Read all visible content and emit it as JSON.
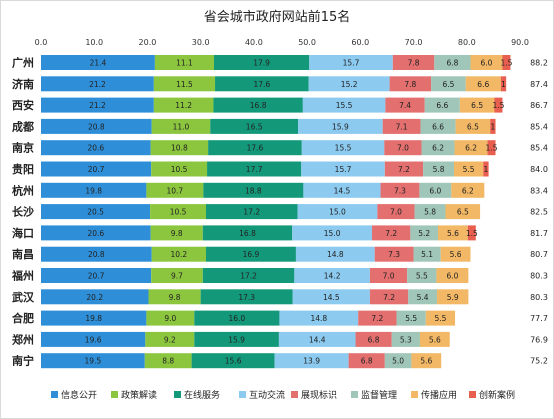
{
  "chart_data": {
    "type": "bar",
    "orientation": "horizontal",
    "stacked": true,
    "title": "省会城市政府网站前15名",
    "xlim": [
      0,
      90
    ],
    "xticks": [
      "0.0",
      "10.0",
      "20.0",
      "30.0",
      "40.0",
      "50.0",
      "60.0",
      "70.0",
      "80.0",
      "90.0"
    ],
    "grid": false,
    "legend_position": "bottom",
    "categories": [
      "广州",
      "济南",
      "西安",
      "成都",
      "南京",
      "贵阳",
      "杭州",
      "长沙",
      "海口",
      "南昌",
      "福州",
      "武汉",
      "合肥",
      "郑州",
      "南宁"
    ],
    "totals": [
      "88.2",
      "87.4",
      "86.7",
      "85.4",
      "85.4",
      "84.0",
      "83.4",
      "82.5",
      "81.7",
      "80.7",
      "80.3",
      "80.3",
      "77.7",
      "76.9",
      "75.2"
    ],
    "series": [
      {
        "name": "信息公开",
        "color": "#2e8fd8",
        "values": [
          21.4,
          21.2,
          21.2,
          20.8,
          20.6,
          20.7,
          19.8,
          20.5,
          20.6,
          20.8,
          20.7,
          20.2,
          19.8,
          19.6,
          19.5
        ]
      },
      {
        "name": "政策解读",
        "color": "#8cc63f",
        "values": [
          11.1,
          11.5,
          11.2,
          11.0,
          10.8,
          10.5,
          10.7,
          10.5,
          9.8,
          10.2,
          9.7,
          9.8,
          9.0,
          9.2,
          8.8
        ]
      },
      {
        "name": "在线服务",
        "color": "#14987a",
        "values": [
          17.9,
          17.6,
          16.8,
          16.5,
          17.6,
          17.7,
          18.8,
          17.2,
          16.8,
          16.9,
          17.2,
          17.3,
          16.0,
          15.9,
          15.6
        ]
      },
      {
        "name": "互动交流",
        "color": "#8ccaf0",
        "values": [
          15.7,
          15.2,
          15.5,
          15.9,
          15.5,
          15.7,
          14.5,
          15.0,
          15.0,
          14.8,
          14.2,
          14.5,
          14.8,
          14.4,
          13.9
        ]
      },
      {
        "name": "展现标识",
        "color": "#e36f6f",
        "values": [
          7.8,
          7.8,
          7.4,
          7.1,
          7.0,
          7.2,
          7.3,
          7.0,
          7.2,
          7.3,
          7.0,
          7.2,
          7.2,
          6.8,
          6.8
        ]
      },
      {
        "name": "监督管理",
        "color": "#9fc6b8",
        "values": [
          6.8,
          6.5,
          6.6,
          6.6,
          6.2,
          5.8,
          6.0,
          5.8,
          5.2,
          5.1,
          5.5,
          5.4,
          5.5,
          5.3,
          5.0
        ]
      },
      {
        "name": "传播应用",
        "color": "#f2b866",
        "values": [
          6.0,
          6.6,
          6.5,
          6.5,
          6.2,
          5.5,
          6.2,
          6.5,
          5.6,
          5.6,
          6.0,
          5.9,
          5.5,
          5.6,
          5.6
        ]
      },
      {
        "name": "创新案例",
        "color": "#e85e4f",
        "values": [
          1.5,
          1.0,
          1.5,
          1.0,
          1.5,
          1.0,
          0,
          0,
          1.5,
          0,
          0,
          0,
          0,
          0,
          0
        ]
      }
    ],
    "segment_labels": [
      [
        "21.4",
        "11.1",
        "17.9",
        "15.7",
        "7.8",
        "6.8",
        "6.0",
        "1.5"
      ],
      [
        "21.2",
        "11.5",
        "17.6",
        "15.2",
        "7.8",
        "6.5",
        "6.6",
        "1"
      ],
      [
        "21.2",
        "11.2",
        "16.8",
        "15.5",
        "7.4",
        "6.6",
        "6.5",
        "1.5"
      ],
      [
        "20.8",
        "11.0",
        "16.5",
        "15.9",
        "7.1",
        "6.6",
        "6.5",
        "1"
      ],
      [
        "20.6",
        "10.8",
        "17.6",
        "15.5",
        "7.0",
        "6.2",
        "6.2",
        "1.5"
      ],
      [
        "20.7",
        "10.5",
        "17.7",
        "15.7",
        "7.2",
        "5.8",
        "5.5",
        "1"
      ],
      [
        "19.8",
        "10.7",
        "18.8",
        "14.5",
        "7.3",
        "6.0",
        "6.2",
        ""
      ],
      [
        "20.5",
        "10.5",
        "17.2",
        "15.0",
        "7.0",
        "5.8",
        "6.5",
        ""
      ],
      [
        "20.6",
        "9.8",
        "16.8",
        "15.0",
        "7.2",
        "5.2",
        "5.6",
        "1.5"
      ],
      [
        "20.8",
        "10.2",
        "16.9",
        "14.8",
        "7.3",
        "5.1",
        "5.6",
        ""
      ],
      [
        "20.7",
        "9.7",
        "17.2",
        "14.2",
        "7.0",
        "5.5",
        "6.0",
        ""
      ],
      [
        "20.2",
        "9.8",
        "17.3",
        "14.5",
        "7.2",
        "5.4",
        "5.9",
        ""
      ],
      [
        "19.8",
        "9.0",
        "16.0",
        "14.8",
        "7.2",
        "5.5",
        "5.5",
        ""
      ],
      [
        "19.6",
        "9.2",
        "15.9",
        "14.4",
        "6.8",
        "5.3",
        "5.6",
        ""
      ],
      [
        "19.5",
        "8.8",
        "15.6",
        "13.9",
        "6.8",
        "5.0",
        "5.6",
        ""
      ]
    ]
  }
}
